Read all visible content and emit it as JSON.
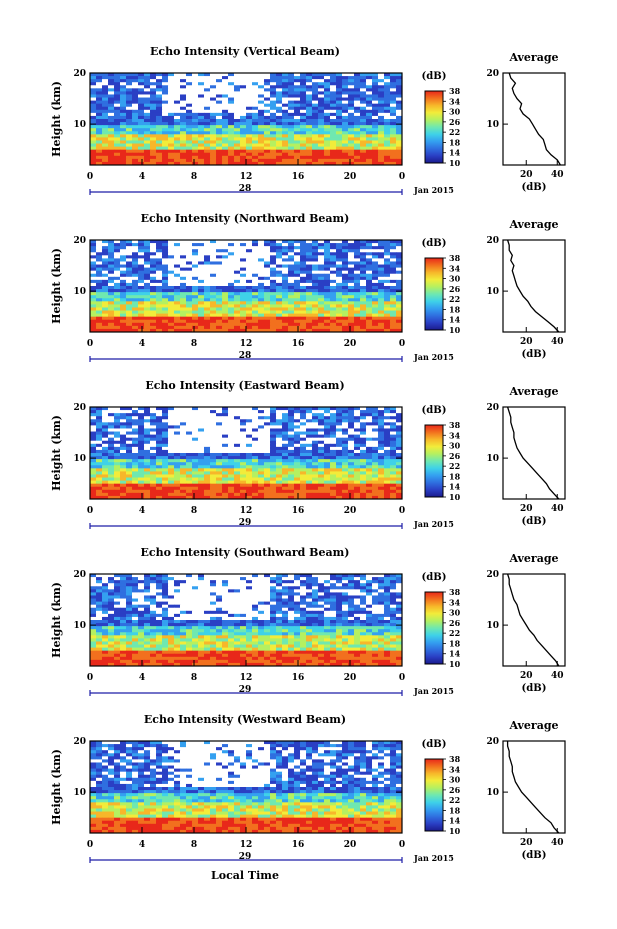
{
  "colors": {
    "colormap": [
      "#1a1a8c",
      "#2a3fc4",
      "#2f6fe0",
      "#34a0f0",
      "#3fd2e8",
      "#6fe8b0",
      "#b5f060",
      "#f2ec3a",
      "#f7b72a",
      "#f2701e",
      "#e8281a"
    ],
    "frame": "#000000",
    "axis_arrow": "#1f1fa8"
  },
  "chart_data": [
    {
      "type": "heatmap",
      "title": "Echo Intensity (Vertical Beam)",
      "ylabel": "Height (km)",
      "yticks": [
        "10",
        "20"
      ],
      "ylim": [
        2,
        20
      ],
      "xticks": [
        "0",
        "4",
        "8",
        "12",
        "16",
        "20",
        "0"
      ],
      "xlim": [
        0,
        24
      ],
      "date_label": "28",
      "month_label": "Jan 2015",
      "colorbar_unit": "(dB)",
      "colorbar_ticks": [
        "10",
        "14",
        "18",
        "22",
        "26",
        "30",
        "34",
        "38"
      ],
      "clim": [
        10,
        38
      ],
      "average_title": "Average",
      "average_xlabel": "(dB)",
      "average_xticks": [
        "20",
        "40"
      ],
      "average_yticks": [
        "10",
        "20"
      ],
      "average_profile": {
        "height": [
          2,
          3,
          4,
          5,
          6,
          7,
          8,
          9,
          10,
          11,
          12,
          13,
          14,
          15,
          16,
          17,
          18,
          19,
          20
        ],
        "db": [
          42,
          40,
          36,
          33,
          32,
          31,
          28,
          26,
          24,
          22,
          18,
          16,
          17,
          14,
          12,
          11,
          13,
          10,
          9
        ]
      }
    },
    {
      "type": "heatmap",
      "title": "Echo Intensity (Northward Beam)",
      "ylabel": "Height (km)",
      "yticks": [
        "10",
        "20"
      ],
      "ylim": [
        2,
        20
      ],
      "xticks": [
        "0",
        "4",
        "8",
        "12",
        "16",
        "20",
        "0"
      ],
      "xlim": [
        0,
        24
      ],
      "date_label": "28",
      "month_label": "Jan 2015",
      "colorbar_unit": "(dB)",
      "colorbar_ticks": [
        "10",
        "14",
        "18",
        "22",
        "26",
        "30",
        "34",
        "38"
      ],
      "clim": [
        10,
        38
      ],
      "average_title": "Average",
      "average_xlabel": "(dB)",
      "average_xticks": [
        "20",
        "40"
      ],
      "average_yticks": [
        "10",
        "20"
      ],
      "average_profile": {
        "height": [
          2,
          3,
          4,
          5,
          6,
          7,
          8,
          9,
          10,
          11,
          12,
          13,
          14,
          15,
          16,
          17,
          18,
          19,
          20
        ],
        "db": [
          41,
          38,
          34,
          30,
          26,
          23,
          21,
          18,
          16,
          14,
          13,
          12,
          11,
          12,
          10,
          11,
          9,
          9,
          8
        ]
      }
    },
    {
      "type": "heatmap",
      "title": "Echo Intensity (Eastward Beam)",
      "ylabel": "Height (km)",
      "yticks": [
        "10",
        "20"
      ],
      "ylim": [
        2,
        20
      ],
      "xticks": [
        "0",
        "4",
        "8",
        "12",
        "16",
        "20",
        "0"
      ],
      "xlim": [
        0,
        24
      ],
      "date_label": "29",
      "month_label": "Jan 2015",
      "colorbar_unit": "(dB)",
      "colorbar_ticks": [
        "10",
        "14",
        "18",
        "22",
        "26",
        "30",
        "34",
        "38"
      ],
      "clim": [
        10,
        38
      ],
      "average_title": "Average",
      "average_xlabel": "(dB)",
      "average_xticks": [
        "20",
        "40"
      ],
      "average_yticks": [
        "10",
        "20"
      ],
      "average_profile": {
        "height": [
          2,
          3,
          4,
          5,
          6,
          7,
          8,
          9,
          10,
          11,
          12,
          13,
          14,
          15,
          16,
          17,
          18,
          19,
          20
        ],
        "db": [
          41,
          38,
          35,
          33,
          30,
          27,
          24,
          21,
          18,
          16,
          14,
          13,
          12,
          12,
          11,
          10,
          10,
          9,
          8
        ]
      }
    },
    {
      "type": "heatmap",
      "title": "Echo Intensity (Southward Beam)",
      "ylabel": "Height (km)",
      "yticks": [
        "10",
        "20"
      ],
      "ylim": [
        2,
        20
      ],
      "xticks": [
        "0",
        "4",
        "8",
        "12",
        "16",
        "20",
        "0"
      ],
      "xlim": [
        0,
        24
      ],
      "date_label": "29",
      "month_label": "Jan 2015",
      "colorbar_unit": "(dB)",
      "colorbar_ticks": [
        "10",
        "14",
        "18",
        "22",
        "26",
        "30",
        "34",
        "38"
      ],
      "clim": [
        10,
        38
      ],
      "average_title": "Average",
      "average_xlabel": "(dB)",
      "average_xticks": [
        "20",
        "40"
      ],
      "average_yticks": [
        "10",
        "20"
      ],
      "average_profile": {
        "height": [
          2,
          3,
          4,
          5,
          6,
          7,
          8,
          9,
          10,
          11,
          12,
          13,
          14,
          15,
          16,
          17,
          18,
          19,
          20
        ],
        "db": [
          41,
          39,
          36,
          33,
          30,
          27,
          25,
          22,
          20,
          18,
          16,
          15,
          14,
          12,
          11,
          10,
          9,
          9,
          8
        ]
      }
    },
    {
      "type": "heatmap",
      "title": "Echo Intensity (Westward Beam)",
      "ylabel": "Height (km)",
      "yticks": [
        "10",
        "20"
      ],
      "ylim": [
        2,
        20
      ],
      "xticks": [
        "0",
        "4",
        "8",
        "12",
        "16",
        "20",
        "0"
      ],
      "xlim": [
        0,
        24
      ],
      "date_label": "29",
      "month_label": "Jan 2015",
      "colorbar_unit": "(dB)",
      "colorbar_ticks": [
        "10",
        "14",
        "18",
        "22",
        "26",
        "30",
        "34",
        "38"
      ],
      "clim": [
        10,
        38
      ],
      "average_title": "Average",
      "average_xlabel": "(dB)",
      "average_xticks": [
        "20",
        "40"
      ],
      "average_yticks": [
        "10",
        "20"
      ],
      "average_profile": {
        "height": [
          2,
          3,
          4,
          5,
          6,
          7,
          8,
          9,
          10,
          11,
          12,
          13,
          14,
          15,
          16,
          17,
          18,
          19,
          20
        ],
        "db": [
          41,
          38,
          36,
          32,
          29,
          26,
          23,
          20,
          17,
          15,
          13,
          12,
          11,
          11,
          10,
          9,
          9,
          8,
          8
        ]
      }
    }
  ],
  "xlabel": "Local Time"
}
